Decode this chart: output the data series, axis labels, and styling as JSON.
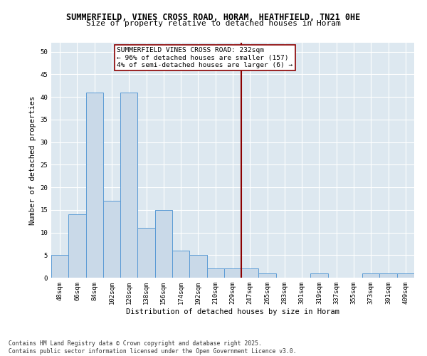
{
  "title1": "SUMMERFIELD, VINES CROSS ROAD, HORAM, HEATHFIELD, TN21 0HE",
  "title2": "Size of property relative to detached houses in Horam",
  "xlabel": "Distribution of detached houses by size in Horam",
  "ylabel": "Number of detached properties",
  "categories": [
    "48sqm",
    "66sqm",
    "84sqm",
    "102sqm",
    "120sqm",
    "138sqm",
    "156sqm",
    "174sqm",
    "192sqm",
    "210sqm",
    "229sqm",
    "247sqm",
    "265sqm",
    "283sqm",
    "301sqm",
    "319sqm",
    "337sqm",
    "355sqm",
    "373sqm",
    "391sqm",
    "409sqm"
  ],
  "values": [
    5,
    14,
    41,
    17,
    41,
    11,
    15,
    6,
    5,
    2,
    2,
    2,
    1,
    0,
    0,
    1,
    0,
    0,
    1,
    1,
    1
  ],
  "bar_color": "#c9d9e8",
  "bar_edge_color": "#5b9bd5",
  "vline_x": 10.5,
  "vline_color": "#8b0000",
  "annotation_text": "SUMMERFIELD VINES CROSS ROAD: 232sqm\n← 96% of detached houses are smaller (157)\n4% of semi-detached houses are larger (6) →",
  "annotation_box_color": "#8b0000",
  "ylim": [
    0,
    52
  ],
  "yticks": [
    0,
    5,
    10,
    15,
    20,
    25,
    30,
    35,
    40,
    45,
    50
  ],
  "background_color": "#dde8f0",
  "footer1": "Contains HM Land Registry data © Crown copyright and database right 2025.",
  "footer2": "Contains public sector information licensed under the Open Government Licence v3.0.",
  "title1_fontsize": 8.5,
  "title2_fontsize": 8.0,
  "xlabel_fontsize": 7.5,
  "ylabel_fontsize": 7.5,
  "tick_fontsize": 6.5,
  "annotation_fontsize": 6.8,
  "footer_fontsize": 5.8
}
